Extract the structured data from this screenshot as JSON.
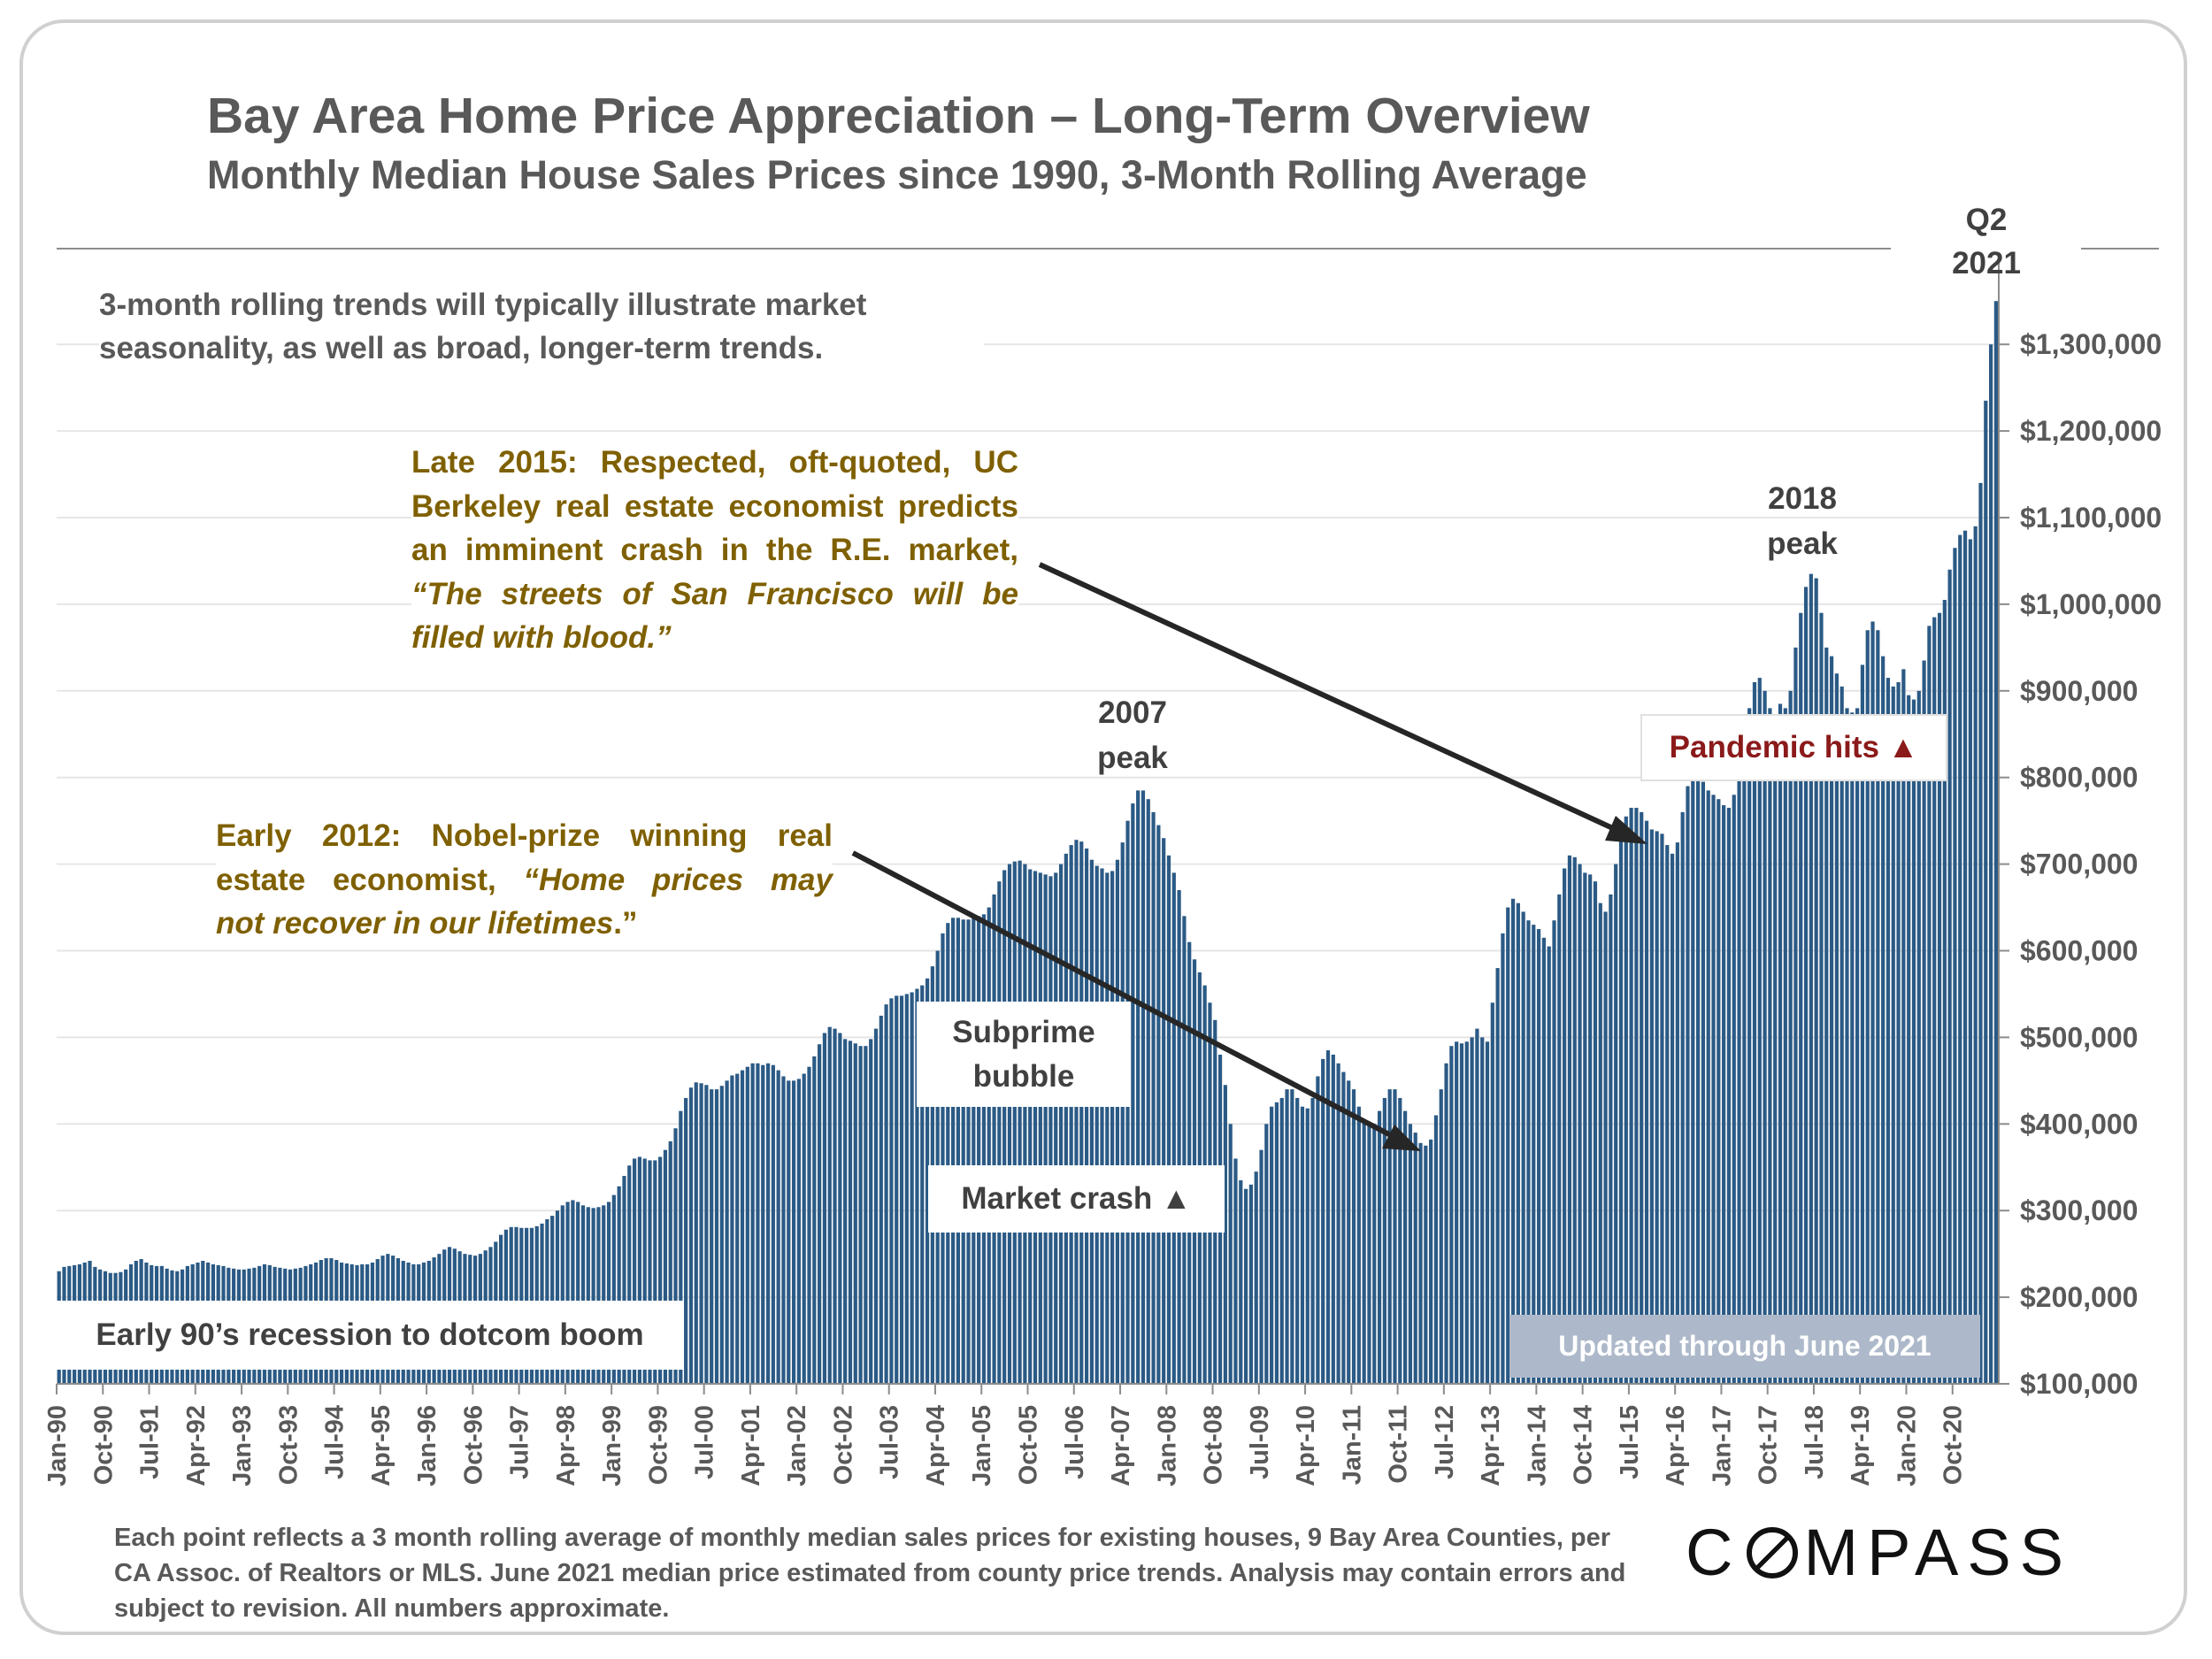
{
  "chart_data": {
    "type": "bar",
    "title": "Bay Area Home Price Appreciation – Long-Term Overview",
    "subtitle": "Monthly Median House Sales Prices since 1990, 3-Month Rolling Average",
    "start_month": "Jan-90",
    "end_month": "Jun-21",
    "ylim": [
      100000,
      1400000
    ],
    "yticks": [
      "$100,000",
      "$200,000",
      "$300,000",
      "$400,000",
      "$500,000",
      "$600,000",
      "$700,000",
      "$800,000",
      "$900,000",
      "$1,000,000",
      "$1,100,000",
      "$1,200,000",
      "$1,300,000"
    ],
    "ytick_values": [
      100000,
      200000,
      300000,
      400000,
      500000,
      600000,
      700000,
      800000,
      900000,
      1000000,
      1100000,
      1200000,
      1300000
    ],
    "xtick_labels": [
      "Jan-90",
      "Oct-90",
      "Jul-91",
      "Apr-92",
      "Jan-93",
      "Oct-93",
      "Jul-94",
      "Apr-95",
      "Jan-96",
      "Oct-96",
      "Jul-97",
      "Apr-98",
      "Jan-99",
      "Oct-99",
      "Jul-00",
      "Apr-01",
      "Jan-02",
      "Oct-02",
      "Jul-03",
      "Apr-04",
      "Jan-05",
      "Oct-05",
      "Jul-06",
      "Apr-07",
      "Jan-08",
      "Oct-08",
      "Jul-09",
      "Apr-10",
      "Jan-11",
      "Oct-11",
      "Jul-12",
      "Apr-13",
      "Jan-14",
      "Oct-14",
      "Jul-15",
      "Apr-16",
      "Jan-17",
      "Oct-17",
      "Jul-18",
      "Apr-19",
      "Jan-20",
      "Oct-20"
    ],
    "xtick_every_months": 9,
    "grid": true,
    "bar_color": "#2b5a85",
    "values": [
      230000,
      235000,
      236000,
      237000,
      238000,
      240000,
      242000,
      235000,
      232000,
      230000,
      228000,
      228000,
      229000,
      232000,
      238000,
      242000,
      244000,
      240000,
      237000,
      236000,
      236000,
      233000,
      231000,
      230000,
      232000,
      236000,
      238000,
      240000,
      242000,
      240000,
      238000,
      237000,
      236000,
      234000,
      233000,
      232000,
      232000,
      233000,
      234000,
      236000,
      238000,
      237000,
      235000,
      234000,
      233000,
      232000,
      233000,
      234000,
      236000,
      238000,
      240000,
      243000,
      245000,
      245000,
      243000,
      240000,
      239000,
      238000,
      237000,
      238000,
      238000,
      240000,
      244000,
      248000,
      250000,
      248000,
      245000,
      242000,
      240000,
      238000,
      238000,
      240000,
      242000,
      246000,
      250000,
      255000,
      258000,
      256000,
      253000,
      250000,
      249000,
      248000,
      250000,
      254000,
      258000,
      264000,
      272000,
      278000,
      281000,
      281000,
      280000,
      280000,
      280000,
      282000,
      285000,
      290000,
      294000,
      300000,
      306000,
      310000,
      312000,
      310000,
      306000,
      304000,
      303000,
      304000,
      306000,
      310000,
      318000,
      328000,
      340000,
      352000,
      360000,
      362000,
      360000,
      358000,
      358000,
      362000,
      370000,
      380000,
      395000,
      415000,
      430000,
      442000,
      448000,
      447000,
      445000,
      440000,
      440000,
      444000,
      450000,
      456000,
      458000,
      462000,
      466000,
      470000,
      470000,
      468000,
      470000,
      468000,
      462000,
      455000,
      450000,
      450000,
      452000,
      458000,
      466000,
      478000,
      492000,
      505000,
      512000,
      510000,
      505000,
      498000,
      496000,
      493000,
      490000,
      490000,
      498000,
      510000,
      525000,
      538000,
      545000,
      548000,
      548000,
      550000,
      552000,
      556000,
      560000,
      568000,
      582000,
      600000,
      620000,
      632000,
      638000,
      638000,
      636000,
      636000,
      638000,
      640000,
      642000,
      650000,
      665000,
      680000,
      693000,
      700000,
      703000,
      704000,
      700000,
      694000,
      692000,
      690000,
      688000,
      686000,
      690000,
      700000,
      712000,
      722000,
      728000,
      726000,
      718000,
      705000,
      698000,
      695000,
      690000,
      692000,
      705000,
      725000,
      750000,
      770000,
      785000,
      785000,
      775000,
      760000,
      745000,
      730000,
      710000,
      690000,
      670000,
      640000,
      610000,
      590000,
      575000,
      560000,
      540000,
      520000,
      480000,
      445000,
      400000,
      360000,
      335000,
      325000,
      330000,
      345000,
      370000,
      400000,
      420000,
      425000,
      430000,
      440000,
      440000,
      430000,
      420000,
      418000,
      430000,
      455000,
      475000,
      485000,
      480000,
      470000,
      460000,
      450000,
      440000,
      420000,
      405000,
      398000,
      400000,
      415000,
      430000,
      440000,
      440000,
      430000,
      415000,
      400000,
      390000,
      378000,
      375000,
      382000,
      410000,
      440000,
      470000,
      490000,
      495000,
      493000,
      495000,
      500000,
      510000,
      500000,
      495000,
      540000,
      580000,
      620000,
      650000,
      660000,
      655000,
      645000,
      635000,
      630000,
      625000,
      615000,
      605000,
      635000,
      665000,
      695000,
      710000,
      708000,
      700000,
      690000,
      688000,
      680000,
      655000,
      645000,
      665000,
      700000,
      730000,
      755000,
      765000,
      765000,
      760000,
      750000,
      740000,
      738000,
      735000,
      722000,
      712000,
      725000,
      760000,
      790000,
      805000,
      805000,
      795000,
      785000,
      780000,
      775000,
      768000,
      765000,
      780000,
      810000,
      840000,
      880000,
      910000,
      915000,
      900000,
      880000,
      870000,
      885000,
      880000,
      900000,
      950000,
      990000,
      1020000,
      1035000,
      1030000,
      990000,
      950000,
      940000,
      920000,
      905000,
      880000,
      875000,
      880000,
      930000,
      970000,
      980000,
      970000,
      940000,
      915000,
      905000,
      910000,
      925000,
      895000,
      890000,
      900000,
      935000,
      975000,
      985000,
      990000,
      1005000,
      1040000,
      1065000,
      1080000,
      1085000,
      1075000,
      1090000,
      1140000,
      1235000,
      1300000,
      1350000
    ]
  },
  "header": {
    "title": "Bay Area Home Price Appreciation – Long-Term Overview",
    "subtitle": "Monthly Median House Sales Prices since 1990, 3-Month Rolling Average",
    "latest_line1": "Q2",
    "latest_line2": "2021"
  },
  "notes": {
    "rolling": "3-month rolling trends will typically illustrate market seasonality, as well as broad, longer-term trends."
  },
  "annotations": {
    "late2015_l1": "Late 2015: Respected, oft-quoted, UC",
    "late2015_l2": "Berkeley real estate economist predicts",
    "late2015_l3": "an imminent crash in the R.E. market,",
    "late2015_l4": "“The streets of San Francisco will be",
    "late2015_l5": "filled with blood.”",
    "early2012_l1": "Early 2012: Nobel-prize winning real",
    "early2012_l2_a": "estate economist, ",
    "early2012_l2_b": "“Home prices may",
    "early2012_l3": "not recover in our lifetimes",
    "early2012_l3_end": ".”",
    "peak2018_l1": "2018",
    "peak2018_l2": "peak",
    "peak2007_l1": "2007",
    "peak2007_l2": "peak",
    "pandemic": "Pandemic hits ▲",
    "pandemic_color": "#8b1a1a",
    "subprime_l1": "Subprime",
    "subprime_l2": "bubble",
    "crash": "Market crash ▲",
    "early90s": "Early 90’s recession  to dotcom boom",
    "updated": "Updated through June 2021",
    "updated_bg": "#adb9ca",
    "annotation_color": "#7f6000"
  },
  "footer": {
    "text_a": "Each point reflects a 3 month rolling average of monthly median sales prices for existing houses, 9 Bay Area Counties, per CA Assoc. of Realtors or MLS. June 2021 median price estimated from county price trends. Analysis may contain errors and subject to revision. All numbers approximate.",
    "logo": "COMPASS"
  }
}
